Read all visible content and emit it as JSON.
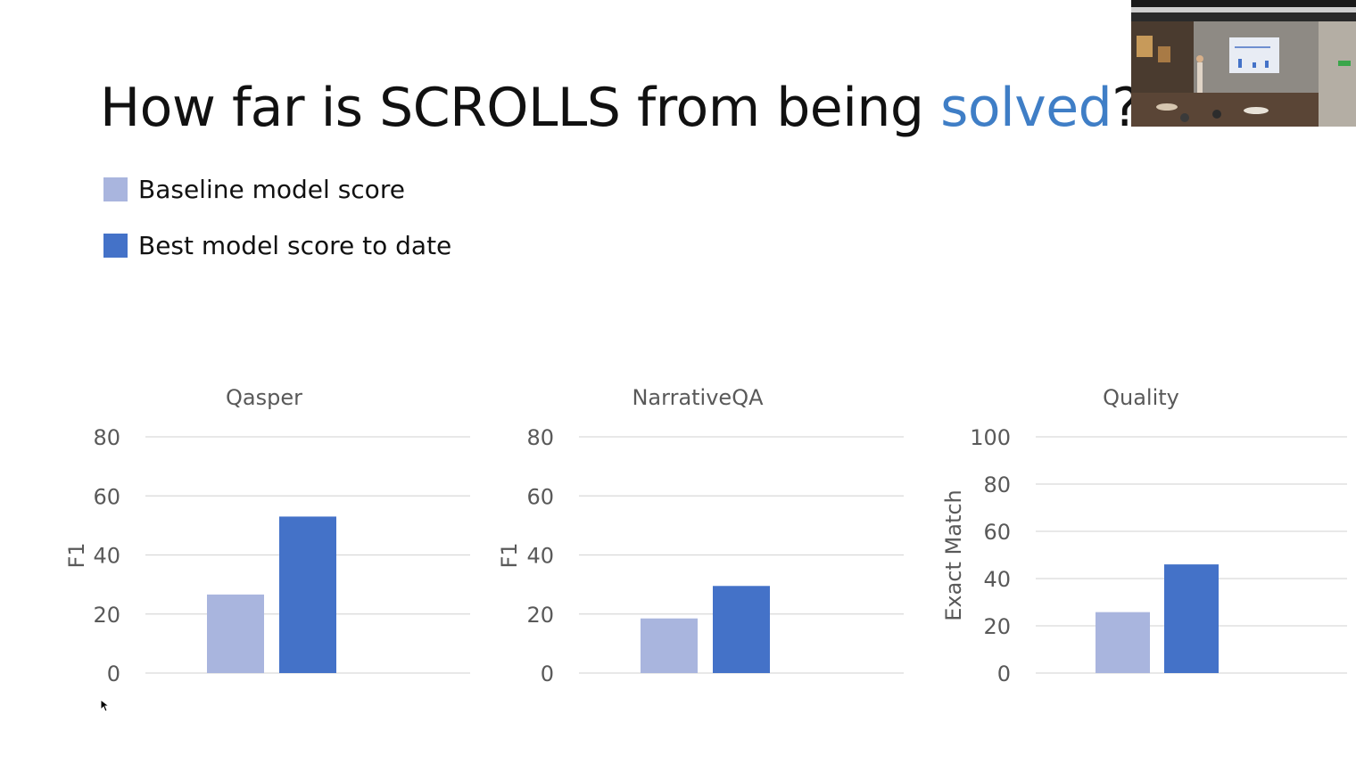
{
  "slide": {
    "title_main": "How far is SCROLLS from being ",
    "title_accent": "solved",
    "title_end": "?",
    "colors": {
      "title_accent": "#3f7ec6",
      "baseline": "#a9b5de",
      "best": "#4472c8",
      "grid": "#d9d9d9",
      "axis_text": "#595959"
    }
  },
  "legend": [
    {
      "label": "Baseline model score",
      "color": "#a9b5de"
    },
    {
      "label": "Best model score to date",
      "color": "#4472c8"
    }
  ],
  "chart_data": [
    {
      "type": "bar",
      "title": "Qasper",
      "ylabel": "F1",
      "ylim": [
        0,
        80
      ],
      "yticks": [
        0,
        20,
        40,
        60,
        80
      ],
      "grid": true,
      "series": [
        {
          "name": "Baseline model score",
          "values": [
            26.6
          ]
        },
        {
          "name": "Best model score to date",
          "values": [
            53
          ]
        }
      ]
    },
    {
      "type": "bar",
      "title": "NarrativeQA",
      "ylabel": "F1",
      "ylim": [
        0,
        80
      ],
      "yticks": [
        0,
        20,
        40,
        60,
        80
      ],
      "grid": true,
      "series": [
        {
          "name": "Baseline model score",
          "values": [
            18.5
          ]
        },
        {
          "name": "Best model score to date",
          "values": [
            29.5
          ]
        }
      ]
    },
    {
      "type": "bar",
      "title": "Quality",
      "ylabel": "Exact Match",
      "ylim": [
        0,
        100
      ],
      "yticks": [
        0,
        20,
        40,
        60,
        80,
        100
      ],
      "grid": true,
      "series": [
        {
          "name": "Baseline model score",
          "values": [
            25.8
          ]
        },
        {
          "name": "Best model score to date",
          "values": [
            46
          ]
        }
      ]
    }
  ]
}
